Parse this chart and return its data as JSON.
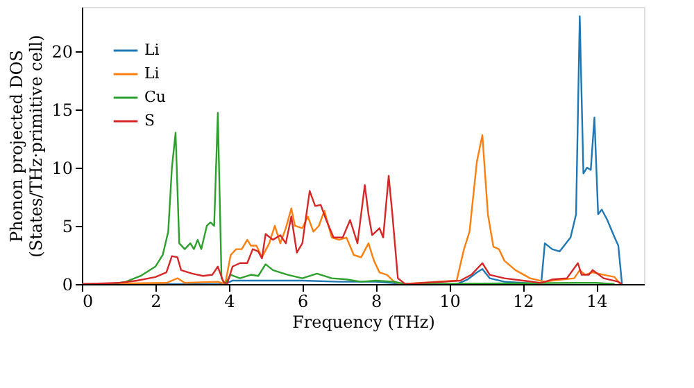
{
  "chart_data": {
    "type": "line",
    "xlabel": "Frequency (THz)",
    "ylabel": "Phonon projected DOS\n(States/THz·primitive cell)",
    "xlim": [
      0,
      15.3
    ],
    "xticks": [
      0,
      2,
      4,
      6,
      8,
      10,
      12,
      14
    ],
    "ylim": [
      0,
      23.8
    ],
    "yticks": [
      0,
      5,
      10,
      15,
      20
    ],
    "grid": false,
    "legend": "top left",
    "line_style": "solid",
    "marker": "none",
    "series": [
      {
        "name": "Li",
        "color": "#1f77b4",
        "x": [
          0,
          3.9,
          4.1,
          5,
          6,
          7,
          8,
          8.8,
          10.2,
          10.5,
          10.75,
          10.9,
          11.1,
          11.5,
          12,
          12.5,
          12.6,
          12.8,
          13.0,
          13.1,
          13.3,
          13.45,
          13.55,
          13.65,
          13.75,
          13.85,
          13.95,
          14.05,
          14.15,
          14.3,
          14.5,
          14.6,
          14.7
        ],
        "values": [
          0,
          0,
          0.3,
          0.3,
          0.3,
          0.2,
          0.2,
          0,
          0,
          0.4,
          1.0,
          1.3,
          0.5,
          0.2,
          0.1,
          0,
          3.5,
          3.0,
          2.8,
          3.2,
          4.0,
          6.0,
          23.0,
          9.5,
          10.0,
          9.8,
          14.3,
          6.0,
          6.4,
          5.5,
          4.0,
          3.3,
          0
        ]
      },
      {
        "name": "Li",
        "color": "#ff7f0e",
        "x": [
          0,
          2.3,
          2.6,
          2.8,
          3.7,
          3.9,
          4.05,
          4.2,
          4.35,
          4.5,
          4.6,
          4.75,
          4.9,
          5.1,
          5.25,
          5.4,
          5.55,
          5.7,
          5.8,
          6.0,
          6.15,
          6.3,
          6.45,
          6.6,
          6.8,
          7.0,
          7.2,
          7.4,
          7.6,
          7.8,
          7.95,
          8.1,
          8.3,
          8.5,
          8.7,
          10.2,
          10.4,
          10.55,
          10.75,
          10.9,
          11.05,
          11.2,
          11.35,
          11.5,
          11.8,
          12.2,
          12.6,
          12.8,
          13.4,
          13.55,
          13.7,
          13.9,
          14.2,
          14.5,
          14.65
        ],
        "values": [
          0,
          0.1,
          0.5,
          0.1,
          0.2,
          0,
          2.5,
          3.0,
          3.0,
          3.8,
          3.3,
          3.3,
          2.3,
          3.5,
          5.0,
          3.5,
          4.8,
          6.5,
          5.0,
          4.8,
          5.8,
          4.5,
          5.0,
          6.3,
          4.0,
          3.8,
          4.0,
          2.5,
          2.3,
          3.5,
          2.0,
          1.0,
          0.8,
          0.2,
          0,
          0.3,
          3.0,
          4.5,
          10.5,
          12.8,
          6.0,
          3.2,
          3.0,
          2.0,
          1.2,
          0.5,
          0.2,
          0.3,
          0.5,
          1.2,
          0.8,
          1.0,
          0.8,
          0.6,
          0
        ]
      },
      {
        "name": "Cu",
        "color": "#2ca02c",
        "x": [
          0,
          0.8,
          1.2,
          1.6,
          2.0,
          2.2,
          2.35,
          2.45,
          2.55,
          2.65,
          2.8,
          2.95,
          3.05,
          3.15,
          3.25,
          3.4,
          3.5,
          3.6,
          3.7,
          3.8,
          3.9,
          4.05,
          4.3,
          4.6,
          4.8,
          5.0,
          5.2,
          5.6,
          6.0,
          6.4,
          6.8,
          7.2,
          7.6,
          8.0,
          8.5,
          8.8,
          13.5,
          14.0,
          14.5
        ],
        "values": [
          0,
          0,
          0.2,
          0.7,
          1.5,
          2.5,
          4.5,
          10.0,
          13.0,
          3.5,
          3.0,
          3.5,
          3.0,
          3.8,
          3.0,
          5.0,
          5.3,
          5.0,
          14.7,
          0.5,
          0,
          0.8,
          0.5,
          0.8,
          0.7,
          1.7,
          1.2,
          0.8,
          0.5,
          0.9,
          0.5,
          0.4,
          0.2,
          0.3,
          0.2,
          0,
          0.1,
          0.1,
          0
        ]
      },
      {
        "name": "S",
        "color": "#d62728",
        "x": [
          0,
          1.0,
          1.5,
          2.0,
          2.3,
          2.45,
          2.6,
          2.7,
          3.0,
          3.3,
          3.55,
          3.7,
          3.85,
          3.95,
          4.1,
          4.3,
          4.5,
          4.65,
          4.8,
          4.9,
          5.0,
          5.2,
          5.4,
          5.55,
          5.7,
          5.85,
          6.0,
          6.2,
          6.35,
          6.5,
          6.65,
          6.85,
          7.1,
          7.3,
          7.5,
          7.7,
          7.8,
          7.9,
          8.1,
          8.2,
          8.35,
          8.45,
          8.6,
          8.8,
          10.3,
          10.6,
          10.9,
          11.1,
          11.5,
          12.0,
          12.5,
          12.8,
          13.2,
          13.5,
          13.6,
          13.8,
          13.9,
          14.2,
          14.6,
          14.7
        ],
        "values": [
          0,
          0.1,
          0.3,
          0.6,
          1.0,
          2.4,
          2.3,
          1.2,
          0.9,
          0.7,
          0.8,
          1.5,
          0.2,
          0,
          1.5,
          1.8,
          1.8,
          3.0,
          2.8,
          2.2,
          4.3,
          3.8,
          4.2,
          3.5,
          5.8,
          2.7,
          3.5,
          8.0,
          6.7,
          6.8,
          5.5,
          4.0,
          4.0,
          5.5,
          3.5,
          8.5,
          6.0,
          4.2,
          4.8,
          4.0,
          9.3,
          6.0,
          0.5,
          0,
          0.3,
          0.8,
          1.8,
          0.8,
          0.5,
          0.3,
          0.1,
          0.4,
          0.5,
          1.8,
          0.8,
          0.8,
          1.2,
          0.5,
          0.2,
          0
        ]
      }
    ]
  }
}
